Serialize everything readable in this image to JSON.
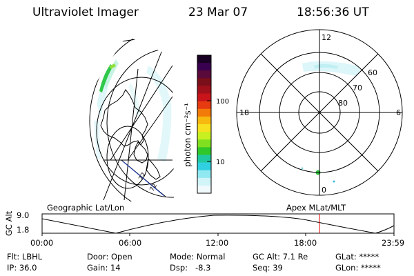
{
  "header": {
    "instrument": "Ultraviolet Imager",
    "date": "23 Mar 07",
    "time": "18:56:36 UT"
  },
  "colorbar": {
    "label": "photon cm⁻²s⁻¹",
    "tick_100": "100",
    "tick_10": "10",
    "colors_top_to_bottom": [
      "#1a0024",
      "#3a0050",
      "#5a0a3a",
      "#7a0f1a",
      "#a0101a",
      "#c8141a",
      "#e63a10",
      "#f27a08",
      "#f7b810",
      "#f7e020",
      "#c8f020",
      "#80e020",
      "#30c828",
      "#20c8a0",
      "#30d0e0",
      "#90e8f0",
      "#d0f4f8",
      "#f0fafc"
    ]
  },
  "geo_panel": {
    "label": "Geographic Lat/Lon",
    "markers": [
      "72",
      "72"
    ]
  },
  "polar_panel": {
    "label": "Apex MLat/MLT",
    "mlt": {
      "top": "12",
      "left": "18",
      "right": "6",
      "bottom": "0"
    },
    "mlat": {
      "outer": "60",
      "middle": "70",
      "inner": "80"
    }
  },
  "timeline": {
    "y_axis_label": "GC Alt",
    "y_top": "9.0",
    "y_bottom": "1.8",
    "x_ticks": [
      "00:00",
      "06:00",
      "12:00",
      "18:00",
      "23:59"
    ],
    "current_time_marker_color": "#e00000"
  },
  "status": {
    "flt": "Flt: LBHL",
    "ip": "IP: 36.0",
    "door": "Door: Open",
    "gain": "Gain: 14",
    "mode": "Mode: Normal",
    "dsp": "Dsp:   -8.3",
    "gc_alt": "GC Alt: 7.1 Re",
    "seq": "Seq: 39",
    "glat": "GLat: *****",
    "glon": "GLon: *****"
  }
}
